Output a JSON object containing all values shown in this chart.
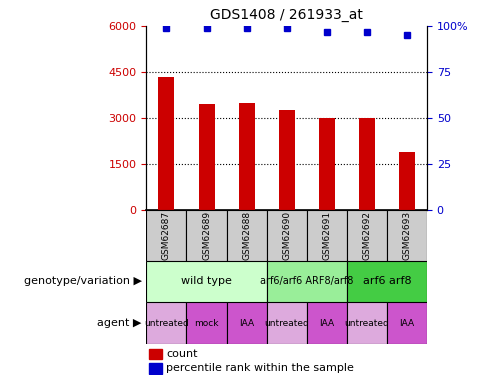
{
  "title": "GDS1408 / 261933_at",
  "samples": [
    "GSM62687",
    "GSM62689",
    "GSM62688",
    "GSM62690",
    "GSM62691",
    "GSM62692",
    "GSM62693"
  ],
  "bar_values": [
    4350,
    3450,
    3500,
    3250,
    3000,
    3000,
    1900
  ],
  "percentile_values": [
    99,
    99,
    99,
    99,
    97,
    97,
    95
  ],
  "bar_color": "#cc0000",
  "dot_color": "#0000cc",
  "left_ylim": [
    0,
    6000
  ],
  "left_yticks": [
    0,
    1500,
    3000,
    4500,
    6000
  ],
  "right_ylim": [
    0,
    100
  ],
  "right_yticks": [
    0,
    25,
    50,
    75,
    100
  ],
  "genotype_groups": [
    {
      "label": "wild type",
      "start": 0,
      "end": 3,
      "color": "#ccffcc",
      "text_size": 8
    },
    {
      "label": "arf6/arf6 ARF8/arf8",
      "start": 3,
      "end": 5,
      "color": "#99ee99",
      "text_size": 7
    },
    {
      "label": "arf6 arf8",
      "start": 5,
      "end": 7,
      "color": "#44cc44",
      "text_size": 8
    }
  ],
  "agent_colors": [
    "#ddaadd",
    "#cc55cc",
    "#cc55cc",
    "#ddaadd",
    "#cc55cc",
    "#ddaadd",
    "#cc55cc"
  ],
  "agent_labels": [
    "untreated",
    "mock",
    "IAA",
    "untreated",
    "IAA",
    "untreated",
    "IAA"
  ],
  "sample_box_color": "#cccccc",
  "legend_items": [
    {
      "color": "#cc0000",
      "label": "count"
    },
    {
      "color": "#0000cc",
      "label": "percentile rank within the sample"
    }
  ],
  "dotted_grid_values": [
    1500,
    3000,
    4500
  ],
  "bar_width": 0.4
}
